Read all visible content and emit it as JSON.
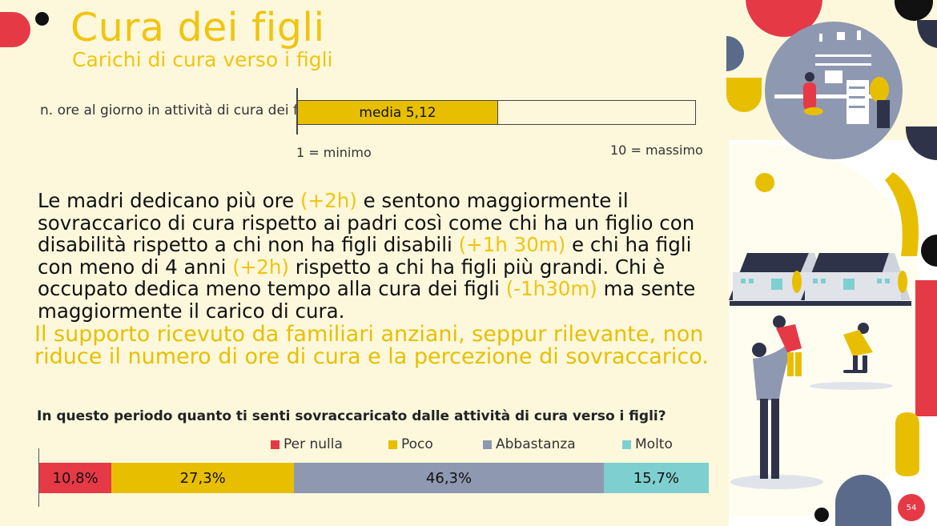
{
  "header": {
    "title": "Cura dei figli",
    "subtitle": "Carichi di cura verso i figli"
  },
  "range_scale": {
    "label": "n. ore al giorno in attività di cura dei figli",
    "fill_text": "media 5,12",
    "mean_value": 5.12,
    "min_label": "1 = minimo",
    "max_label": "10 = massimo",
    "scale_min": 1,
    "scale_max": 10
  },
  "body": {
    "p1": "Le madri dedicano più ore ",
    "h1": "(+2h)",
    "p2": " e sentono maggiormente il sovraccarico di cura rispetto ai padri così come chi ha un figlio con disabilità rispetto a chi non ha figli disabili ",
    "h2": "(+1h 30m)",
    "p3": " e chi ha figli con meno di 4 anni ",
    "h3": "(+2h)",
    "p4": " rispetto a chi ha figli più grandi.  Chi è occupato dedica meno tempo alla cura dei figli ",
    "h4": "(-1h30m)",
    "p5": " ma sente maggiormente il carico di cura.",
    "highlight_paragraph": "Il supporto ricevuto da familiari anziani, seppur rilevante, non riduce il numero di ore di cura e la percezione di sovraccarico."
  },
  "chart_data": {
    "type": "bar",
    "title": "In questo periodo quanto ti senti sovraccaricato dalle attività di cura verso i figli?",
    "stacked": true,
    "orientation": "horizontal",
    "legend_position": "top",
    "series": [
      {
        "name": "Per nulla",
        "value": 10.8,
        "label": "10,8%",
        "color": "#e63946"
      },
      {
        "name": "Poco",
        "value": 27.3,
        "label": "27,3%",
        "color": "#e8bf00"
      },
      {
        "name": "Abbastanza",
        "value": 46.3,
        "label": "46,3%",
        "color": "#8e98b1"
      },
      {
        "name": "Molto",
        "value": 15.7,
        "label": "15,7%",
        "color": "#7ecfcf"
      }
    ]
  },
  "footer": {
    "page_number": "54"
  },
  "colors": {
    "background": "#fdf8dc",
    "accent_yellow": "#f1c40f",
    "accent_red": "#e63946",
    "navy": "#2f3349",
    "slate": "#8e98b1"
  }
}
